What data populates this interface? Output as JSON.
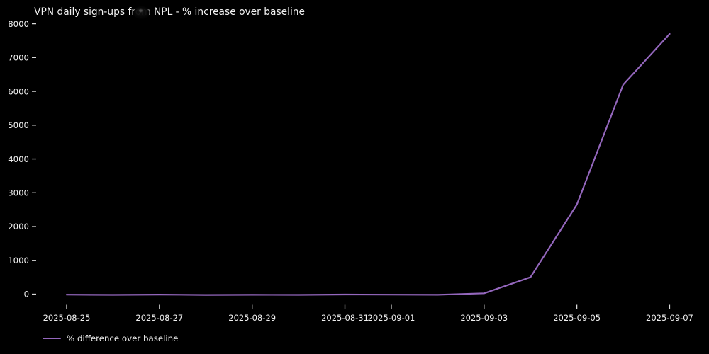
{
  "colors": {
    "background": "#000000",
    "text": "#f2f2f2",
    "tick": "#d9d9d9",
    "line": "#9467bd"
  },
  "icons": {
    "cursor_smudge": "dark-cursor-smudge-over-title"
  },
  "legend": {
    "position": "lower left"
  },
  "chart_data": {
    "type": "line",
    "title": "VPN daily sign-ups from NPL - % increase over baseline",
    "xlabel": "",
    "ylabel": "",
    "grid": false,
    "legend_position": "lower left, below axis",
    "ylim": [
      -400,
      8100
    ],
    "yticks": [
      0,
      1000,
      2000,
      3000,
      4000,
      5000,
      6000,
      7000,
      8000
    ],
    "x": [
      "2025-08-25",
      "2025-08-26",
      "2025-08-27",
      "2025-08-28",
      "2025-08-29",
      "2025-08-30",
      "2025-08-31",
      "2025-09-01",
      "2025-09-02",
      "2025-09-03",
      "2025-09-04",
      "2025-09-05",
      "2025-09-06",
      "2025-09-07"
    ],
    "xticks": [
      {
        "label": "2025-08-25",
        "index": 0
      },
      {
        "label": "2025-08-27",
        "index": 2
      },
      {
        "label": "2025-08-29",
        "index": 4
      },
      {
        "label": "2025-08-31",
        "index": 6
      },
      {
        "label": "2025-09-01",
        "index": 7
      },
      {
        "label": "2025-09-03",
        "index": 9
      },
      {
        "label": "2025-09-05",
        "index": 11
      },
      {
        "label": "2025-09-07",
        "index": 13
      }
    ],
    "series": [
      {
        "name": "% difference over baseline",
        "color": "#9467bd",
        "values": [
          -15,
          -20,
          -12,
          -22,
          -18,
          -20,
          -10,
          -15,
          -18,
          25,
          500,
          2650,
          6200,
          7700
        ]
      }
    ]
  }
}
